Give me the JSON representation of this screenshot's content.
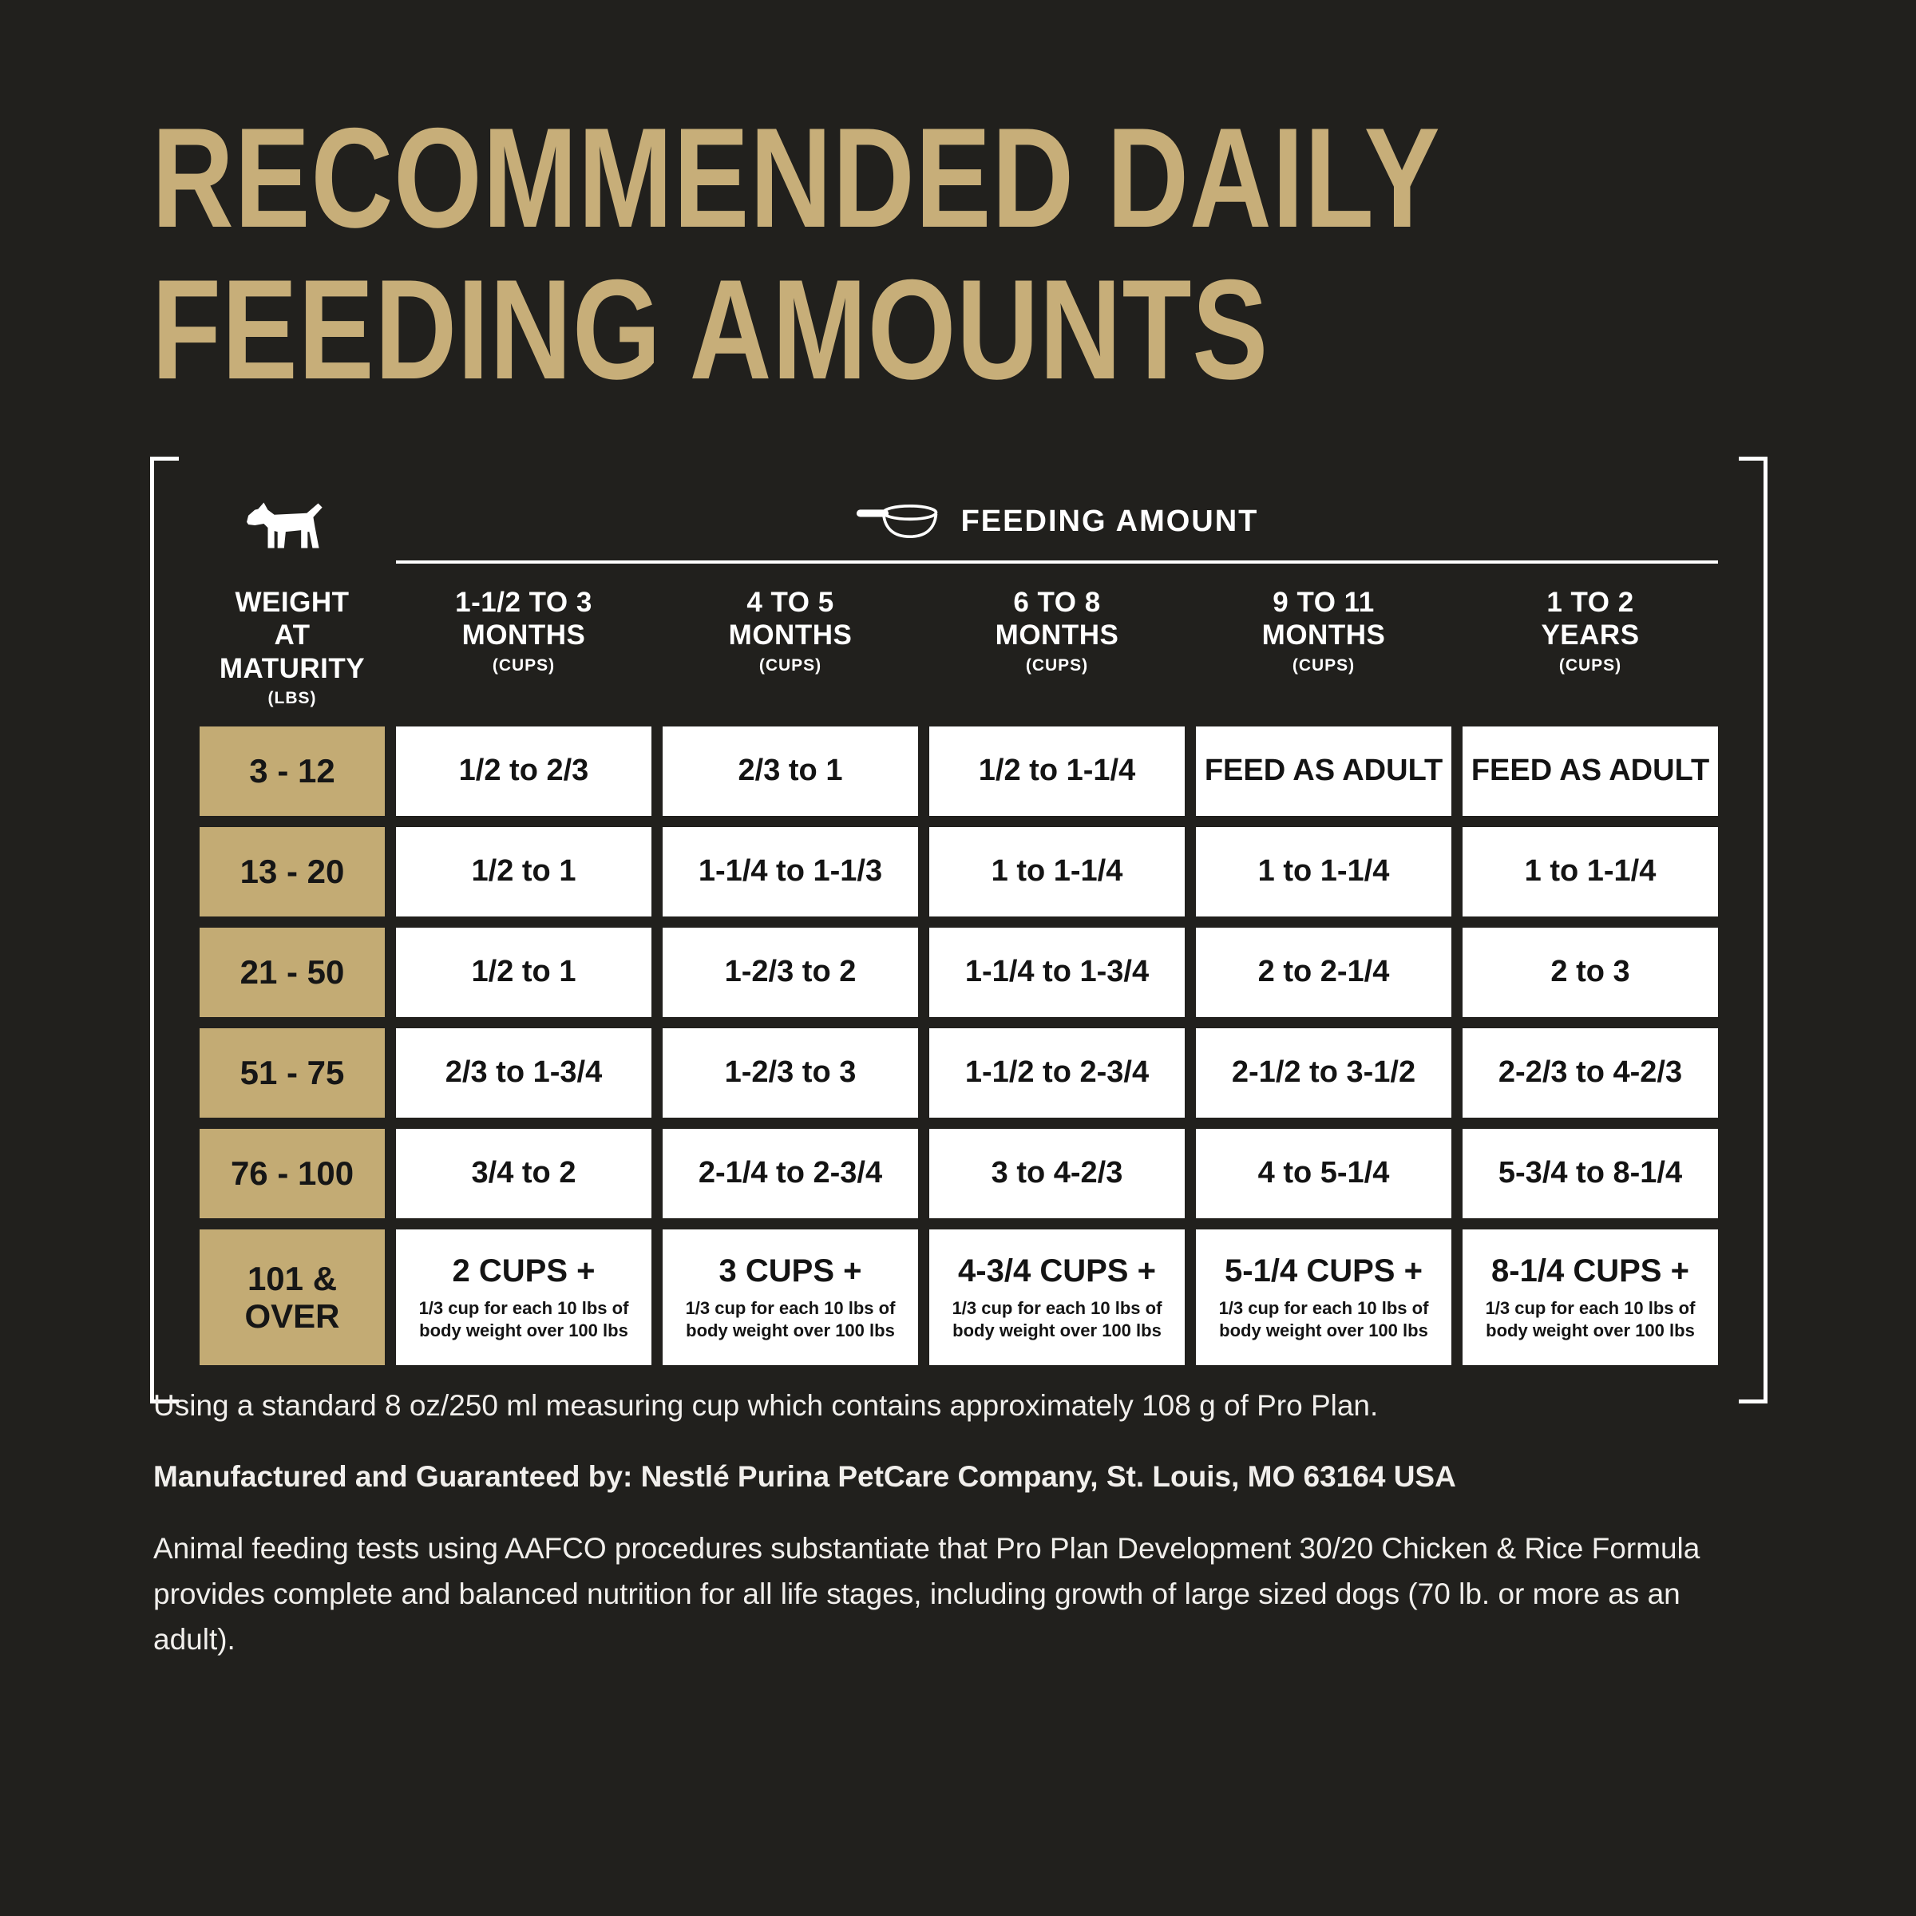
{
  "title": "RECOMMENDED DAILY\nFEEDING AMOUNTS",
  "table": {
    "feeding_amount_label": "FEEDING AMOUNT",
    "weight_header": {
      "line1": "WEIGHT",
      "line2": "AT MATURITY",
      "unit": "(LBS)"
    },
    "columns": [
      {
        "range": "1-1/2 TO 3",
        "period": "MONTHS",
        "unit": "(CUPS)"
      },
      {
        "range": "4 TO 5",
        "period": "MONTHS",
        "unit": "(CUPS)"
      },
      {
        "range": "6 TO 8",
        "period": "MONTHS",
        "unit": "(CUPS)"
      },
      {
        "range": "9 TO 11",
        "period": "MONTHS",
        "unit": "(CUPS)"
      },
      {
        "range": "1 TO 2",
        "period": "YEARS",
        "unit": "(CUPS)"
      }
    ],
    "rows": [
      {
        "weight": "3 - 12",
        "values": [
          "1/2 to 2/3",
          "2/3 to 1",
          "1/2 to 1-1/4",
          "FEED AS ADULT",
          "FEED AS ADULT"
        ]
      },
      {
        "weight": "13 - 20",
        "values": [
          "1/2 to 1",
          "1-1/4 to 1-1/3",
          "1 to 1-1/4",
          "1 to 1-1/4",
          "1 to 1-1/4"
        ]
      },
      {
        "weight": "21 - 50",
        "values": [
          "1/2 to 1",
          "1-2/3 to 2",
          "1-1/4 to 1-3/4",
          "2 to 2-1/4",
          "2 to 3"
        ]
      },
      {
        "weight": "51 - 75",
        "values": [
          "2/3 to 1-3/4",
          "1-2/3 to 3",
          "1-1/2 to 2-3/4",
          "2-1/2 to 3-1/2",
          "2-2/3 to 4-2/3"
        ]
      },
      {
        "weight": "76 - 100",
        "values": [
          "3/4 to 2",
          "2-1/4 to 2-3/4",
          "3 to 4-2/3",
          "4 to 5-1/4",
          "5-3/4 to 8-1/4"
        ]
      },
      {
        "weight": "101 & OVER",
        "values": [
          "2 CUPS +",
          "3 CUPS +",
          "4-3/4 CUPS +",
          "5-1/4 CUPS +",
          "8-1/4 CUPS +"
        ],
        "note": "1/3 cup for each 10 lbs of body weight over 100 lbs"
      }
    ]
  },
  "footer": {
    "line1": "Using a standard 8 oz/250 ml measuring cup which contains approximately 108 g of Pro Plan.",
    "line2": "Manufactured and Guaranteed by: Nestlé Purina PetCare Company, St. Louis, MO 63164 USA",
    "line3": "Animal feeding tests using AAFCO procedures substantiate that Pro Plan Development 30/20 Chicken & Rice Formula provides complete and balanced nutrition for all life stages, including growth of large sized dogs (70 lb. or more as an adult)."
  },
  "colors": {
    "background": "#21201d",
    "gold": "#c3ab74",
    "gold_title": "#c7ae79",
    "cell_white": "#ffffff",
    "text_dark": "#141414",
    "text_light": "#f1efec"
  }
}
